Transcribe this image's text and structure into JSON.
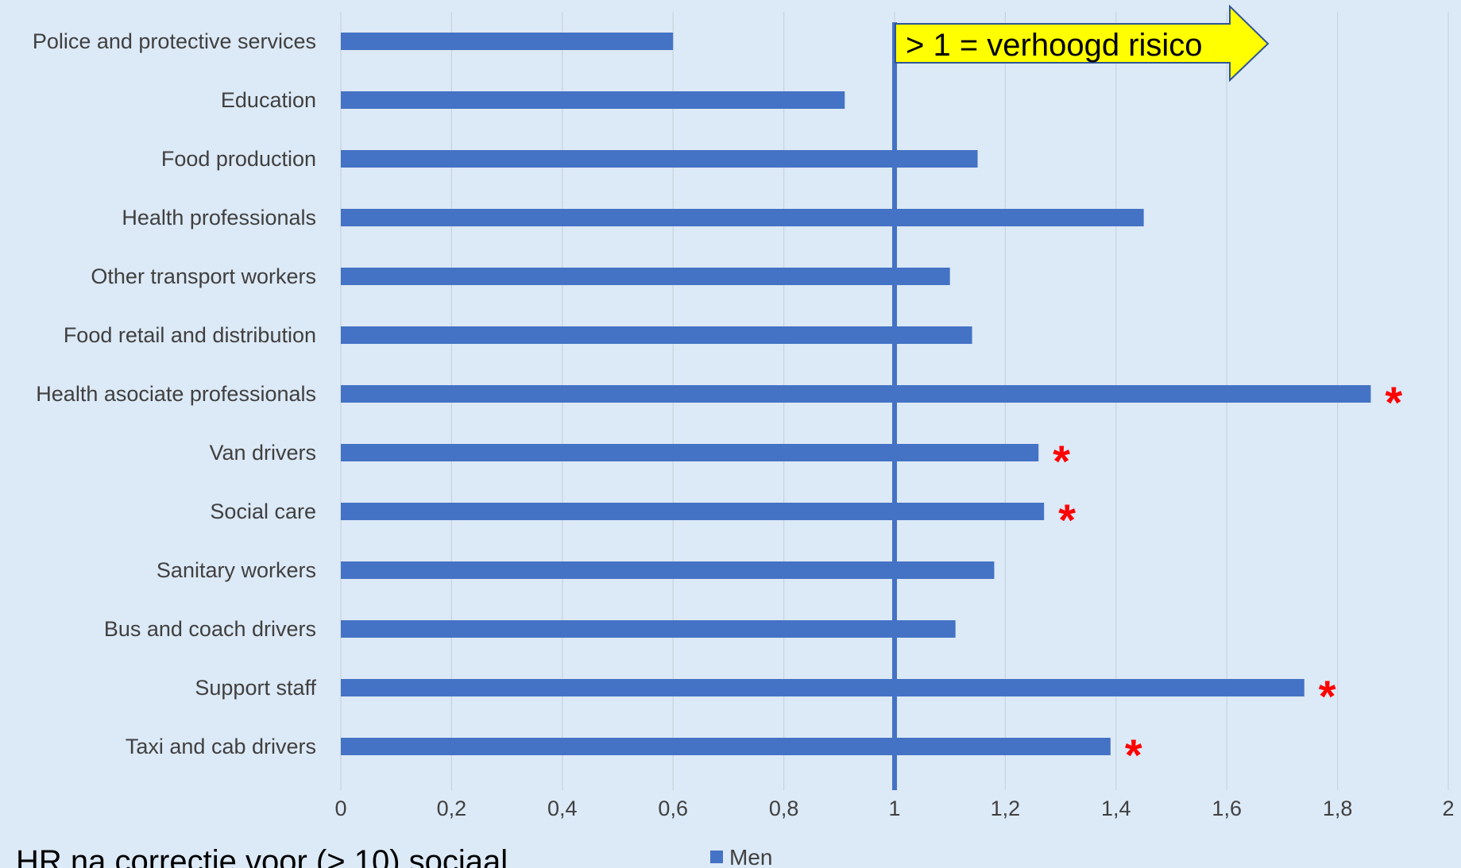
{
  "chart_data": {
    "type": "bar",
    "orientation": "horizontal",
    "categories": [
      "Police and protective services",
      "Education",
      "Food production",
      "Health professionals",
      "Other transport workers",
      "Food retail and distribution",
      "Health asociate professionals",
      "Van drivers",
      "Social care",
      "Sanitary workers",
      "Bus and coach drivers",
      "Support staff",
      "Taxi and cab drivers"
    ],
    "series": [
      {
        "name": "Men",
        "color": "#4472c4",
        "values": [
          0.6,
          0.91,
          1.15,
          1.45,
          1.1,
          1.14,
          1.86,
          1.26,
          1.27,
          1.18,
          1.11,
          1.74,
          1.39
        ]
      }
    ],
    "significant": [
      false,
      false,
      false,
      false,
      false,
      false,
      true,
      true,
      true,
      false,
      false,
      true,
      true
    ],
    "significance_marker": "*",
    "xlim": [
      0,
      2
    ],
    "x_ticks": [
      "0",
      "0,2",
      "0,4",
      "0,6",
      "0,8",
      "1",
      "1,2",
      "1,4",
      "1,6",
      "1,8",
      "2"
    ],
    "reference_line": 1,
    "annotation": "> 1 = verhoogd risico",
    "grid": "vertical",
    "legend_position": "bottom"
  },
  "caption": "HR na correctie voor (> 10) sociaal",
  "colors": {
    "background": "#dce9f6",
    "bar": "#4472c4",
    "reference_line": "#4472c4",
    "significance": "#ff0000",
    "arrow_fill": "#ffff00",
    "arrow_stroke": "#2f5597",
    "grid": "#c8d3de"
  }
}
